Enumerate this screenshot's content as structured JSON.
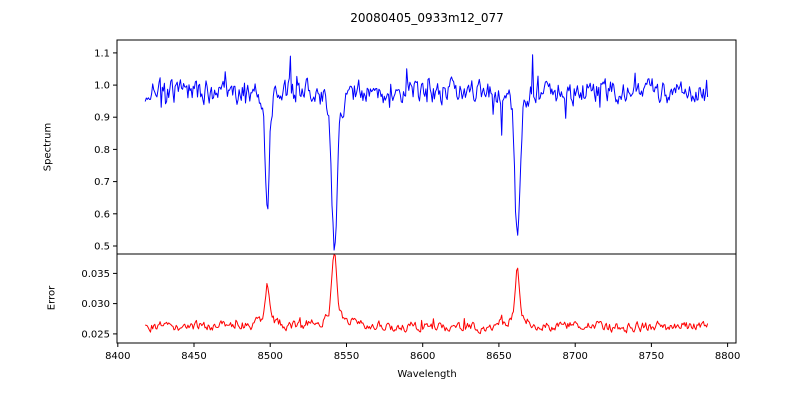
{
  "figure": {
    "title": "20080405_0933m12_077",
    "xlabel": "Wavelength",
    "ylabel_top": "Spectrum",
    "ylabel_bottom": "Error",
    "background": "#ffffff"
  },
  "chart_data": {
    "type": "line",
    "title": "20080405_0933m12_077",
    "xlabel": "Wavelength",
    "x_range_data": [
      8418,
      8787
    ],
    "xlim": [
      8399.5,
      8805.5
    ],
    "xticks": [
      8400,
      8450,
      8500,
      8550,
      8600,
      8650,
      8700,
      8750,
      8800
    ],
    "seed": 7,
    "panels": [
      {
        "name": "spectrum",
        "ylabel": "Spectrum",
        "color": "#0000ff",
        "ylim": [
          0.475,
          1.14
        ],
        "yticks": [
          0.5,
          0.6,
          0.7,
          0.8,
          0.9,
          1.0,
          1.1
        ],
        "ytick_decimals": 1,
        "continuum": 1.0,
        "noise_amplitude": 0.032,
        "absorption_lines": [
          {
            "center": 8498.0,
            "core_depth": 0.32,
            "core_width": 1.3,
            "wing_depth": 0.04,
            "wing_width": 4.0,
            "min_value": 0.62
          },
          {
            "center": 8542.1,
            "core_depth": 0.42,
            "core_width": 1.8,
            "wing_depth": 0.06,
            "wing_width": 6.0,
            "min_value": 0.5
          },
          {
            "center": 8662.1,
            "core_depth": 0.4,
            "core_width": 1.5,
            "wing_depth": 0.05,
            "wing_width": 5.0,
            "min_value": 0.52
          }
        ]
      },
      {
        "name": "error",
        "ylabel": "Error",
        "color": "#ff0000",
        "ylim": [
          0.0235,
          0.0382
        ],
        "yticks": [
          0.025,
          0.03,
          0.035
        ],
        "ytick_decimals": 3,
        "baseline": 0.0262,
        "noise_amplitude": 0.0007,
        "peaks": [
          {
            "center": 8498.0,
            "height": 0.006,
            "width": 1.5,
            "peak_value": 0.0325
          },
          {
            "center": 8542.1,
            "height": 0.0105,
            "width": 1.6,
            "peak_value": 0.037
          },
          {
            "center": 8662.1,
            "height": 0.008,
            "width": 1.5,
            "peak_value": 0.0345
          }
        ]
      }
    ]
  }
}
